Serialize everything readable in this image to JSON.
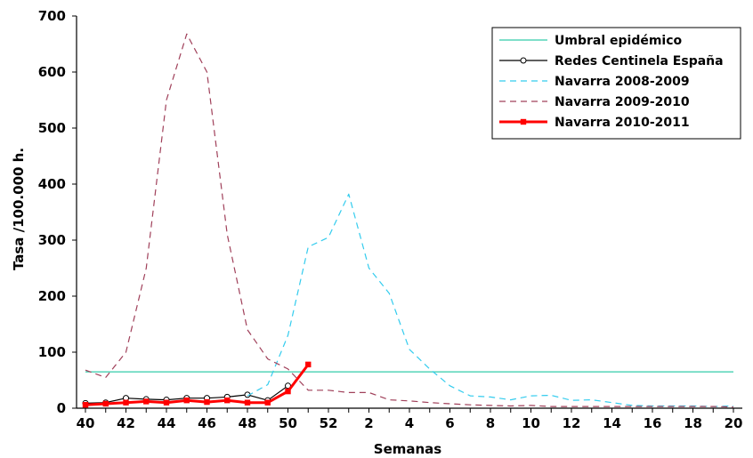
{
  "chart_data": {
    "type": "line",
    "xlabel": "Semanas",
    "ylabel": "Tasa /100.000 h.",
    "ylim": [
      0,
      700
    ],
    "yticks": [
      "0",
      "100",
      "200",
      "300",
      "400",
      "500",
      "600",
      "700"
    ],
    "x_weeks": [
      40,
      41,
      42,
      43,
      44,
      45,
      46,
      47,
      48,
      49,
      50,
      51,
      52,
      1,
      2,
      3,
      4,
      5,
      6,
      7,
      8,
      9,
      10,
      11,
      12,
      13,
      14,
      15,
      16,
      17,
      18,
      19,
      20
    ],
    "xtick_labels": [
      "40",
      "42",
      "44",
      "46",
      "48",
      "50",
      "52",
      "2",
      "4",
      "6",
      "8",
      "10",
      "12",
      "14",
      "16",
      "18",
      "20"
    ],
    "grid": false,
    "legend_position": "top-right",
    "series": [
      {
        "name": "Umbral epidémico",
        "color": "#33CCAA",
        "style": "solid",
        "marker": "none",
        "values": [
          65,
          65,
          65,
          65,
          65,
          65,
          65,
          65,
          65,
          65,
          65,
          65,
          65,
          65,
          65,
          65,
          65,
          65,
          65,
          65,
          65,
          65,
          65,
          65,
          65,
          65,
          65,
          65,
          65,
          65,
          65,
          65,
          65
        ]
      },
      {
        "name": "Redes Centinela España",
        "color": "#000000",
        "style": "solid",
        "marker": "circle",
        "values": [
          9,
          10,
          18,
          16,
          15,
          18,
          18,
          20,
          24,
          14,
          40,
          null,
          null,
          null,
          null,
          null,
          null,
          null,
          null,
          null,
          null,
          null,
          null,
          null,
          null,
          null,
          null,
          null,
          null,
          null,
          null,
          null,
          null
        ]
      },
      {
        "name": "Navarra 2008-2009",
        "color": "#33CCEE",
        "style": "dashed",
        "marker": "none",
        "values": [
          null,
          null,
          null,
          null,
          null,
          null,
          null,
          null,
          22,
          42,
          130,
          288,
          305,
          382,
          250,
          205,
          105,
          70,
          40,
          22,
          20,
          15,
          22,
          23,
          14,
          15,
          10,
          5,
          4,
          4,
          4,
          3,
          4
        ]
      },
      {
        "name": "Navarra 2009-2010",
        "color": "#A0405A",
        "style": "dashed",
        "marker": "none",
        "values": [
          68,
          55,
          100,
          250,
          550,
          668,
          600,
          310,
          140,
          88,
          70,
          32,
          32,
          28,
          28,
          15,
          13,
          10,
          8,
          6,
          5,
          4,
          5,
          3,
          3,
          3,
          3,
          3,
          3,
          3,
          3,
          3,
          2
        ]
      },
      {
        "name": "Navarra 2010-2011",
        "color": "#FF0000",
        "style": "solid-thick",
        "marker": "square",
        "values": [
          6,
          8,
          10,
          12,
          10,
          14,
          11,
          14,
          10,
          10,
          30,
          78,
          null,
          null,
          null,
          null,
          null,
          null,
          null,
          null,
          null,
          null,
          null,
          null,
          null,
          null,
          null,
          null,
          null,
          null,
          null,
          null,
          null
        ]
      }
    ]
  }
}
